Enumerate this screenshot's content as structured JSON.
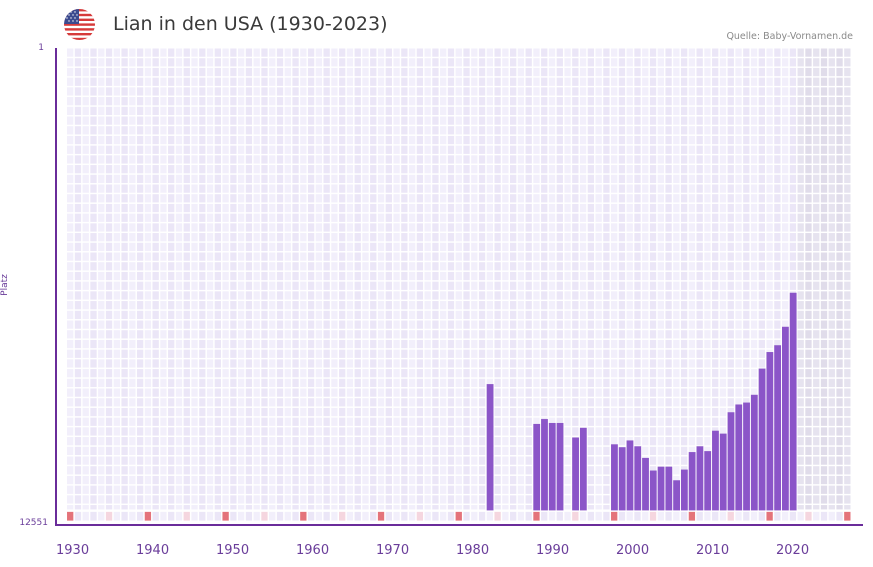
{
  "header": {
    "flag_icon": "us-flag-icon",
    "title": "Lian in den USA (1930-2023)",
    "source": "Quelle: Baby-Vornamen.de"
  },
  "axes": {
    "y_top_label": "1",
    "y_bottom_label": "12551",
    "y_title": "Platz",
    "x_ticks": [
      "1930",
      "1940",
      "1950",
      "1960",
      "1970",
      "1980",
      "1990",
      "2000",
      "2010",
      "2020"
    ]
  },
  "colors": {
    "bar": "#8b55c8",
    "axis": "#6a2c9a",
    "tick_text": "#6a3d9a",
    "grid_cell_a": "#f2effb",
    "grid_cell_b": "#ebe6f7",
    "future_cell_a": "#e6e3ef",
    "future_cell_b": "#e0dcea",
    "decade_marker": "#e4737a",
    "half_decade_marker": "#f5d6df"
  },
  "chart_data": {
    "type": "bar",
    "title": "Lian in den USA (1930-2023)",
    "xlabel": "",
    "ylabel": "Platz",
    "ylim": [
      12551,
      1
    ],
    "y_inverted": true,
    "grid": true,
    "legend": "none",
    "x_range": [
      1930,
      2030
    ],
    "shaded_future_from": 2024,
    "x": [
      1984,
      1990,
      1991,
      1992,
      1993,
      1995,
      1996,
      2000,
      2001,
      2002,
      2003,
      2004,
      2005,
      2006,
      2007,
      2008,
      2009,
      2010,
      2011,
      2012,
      2013,
      2014,
      2015,
      2016,
      2017,
      2018,
      2019,
      2020,
      2021,
      2022,
      2023
    ],
    "values": [
      9123,
      10204,
      10072,
      10178,
      10178,
      10573,
      10309,
      10757,
      10836,
      10652,
      10810,
      11126,
      11469,
      11364,
      11364,
      11733,
      11443,
      10968,
      10810,
      10942,
      10388,
      10467,
      9887,
      9676,
      9624,
      9413,
      8701,
      8253,
      8068,
      7567,
      6644
    ]
  }
}
